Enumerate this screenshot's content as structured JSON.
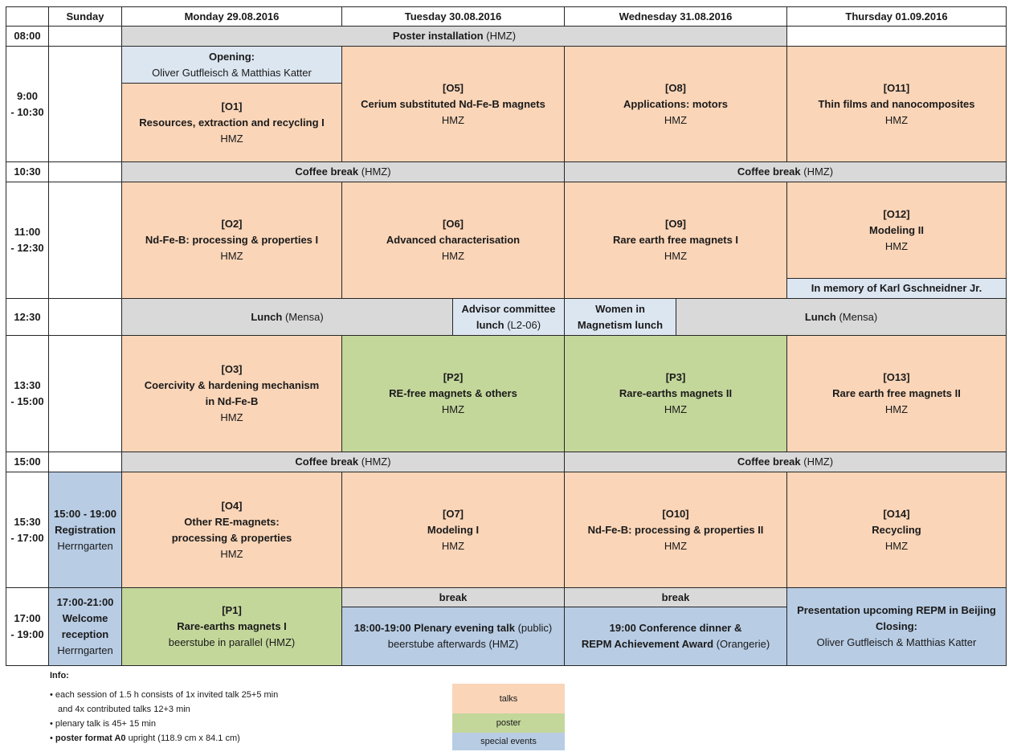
{
  "header": {
    "days": [
      "Sunday",
      "Monday 29.08.2016",
      "Tuesday 30.08.2016",
      "Wednesday 31.08.2016",
      "Thursday 01.09.2016"
    ]
  },
  "times": [
    "08:00",
    "9:00",
    "- 10:30",
    "10:30",
    "11:00",
    "- 12:30",
    "12:30",
    "13:30",
    "- 15:00",
    "15:00",
    "15:30",
    "- 17:00",
    "17:00",
    "- 19:00"
  ],
  "row0800": {
    "poster": "Poster installation",
    "poster_loc": "(HMZ)"
  },
  "row0900": {
    "opening_title": "Opening:",
    "opening_names": "Oliver Gutfleisch & Matthias Katter",
    "o1_code": "[O1]",
    "o1_title": "Resources, extraction and recycling I",
    "o1_loc": "HMZ",
    "o5_code": "[O5]",
    "o5_title": "Cerium substituted Nd-Fe-B magnets",
    "o5_loc": "HMZ",
    "o8_code": "[O8]",
    "o8_title": "Applications: motors",
    "o8_loc": "HMZ",
    "o11_code": "[O11]",
    "o11_title": "Thin films and nanocomposites",
    "o11_loc": "HMZ"
  },
  "row1030": {
    "coffee1": "Coffee break",
    "coffee1_loc": "(HMZ)",
    "coffee2": "Coffee break",
    "coffee2_loc": "(HMZ)"
  },
  "row1100": {
    "o2_code": "[O2]",
    "o2_title": "Nd-Fe-B: processing & properties I",
    "o2_loc": "HMZ",
    "o6_code": "[O6]",
    "o6_title": "Advanced characterisation",
    "o6_loc": "HMZ",
    "o9_code": "[O9]",
    "o9_title": "Rare earth free magnets I",
    "o9_loc": "HMZ",
    "o12_code": "[O12]",
    "o12_title": "Modeling II",
    "o12_loc": "HMZ",
    "memory": "In memory of Karl Gschneidner Jr."
  },
  "row1230": {
    "lunch1": "Lunch",
    "lunch1_loc": "(Mensa)",
    "advisor_line1": "Advisor committee",
    "advisor_line2": "lunch",
    "advisor_loc": "(L2-06)",
    "women_line1": "Women in",
    "women_line2": "Magnetism lunch",
    "lunch2": "Lunch",
    "lunch2_loc": "(Mensa)"
  },
  "row1330": {
    "o3_code": "[O3]",
    "o3_title1": "Coercivity & hardening mechanism",
    "o3_title2": "in Nd-Fe-B",
    "o3_loc": "HMZ",
    "p2_code": "[P2]",
    "p2_title": "RE-free magnets & others",
    "p2_loc": "HMZ",
    "p3_code": "[P3]",
    "p3_title": "Rare-earths magnets II",
    "p3_loc": "HMZ",
    "o13_code": "[O13]",
    "o13_title": "Rare earth free magnets II",
    "o13_loc": "HMZ"
  },
  "row1500": {
    "coffee1": "Coffee break",
    "coffee1_loc": "(HMZ)",
    "coffee2": "Coffee break",
    "coffee2_loc": "(HMZ)"
  },
  "row1530": {
    "reg_time": "15:00 - 19:00",
    "reg_title": "Registration",
    "reg_loc": "Herrngarten",
    "o4_code": "[O4]",
    "o4_title1": "Other RE-magnets:",
    "o4_title2": "processing & properties",
    "o4_loc": "HMZ",
    "o7_code": "[O7]",
    "o7_title": "Modeling I",
    "o7_loc": "HMZ",
    "o10_code": "[O10]",
    "o10_title": "Nd-Fe-B: processing & properties II",
    "o10_loc": "HMZ",
    "o14_code": "[O14]",
    "o14_title": "Recycling",
    "o14_loc": "HMZ"
  },
  "row1700": {
    "welcome_time": "17:00-21:00",
    "welcome_title1": "Welcome",
    "welcome_title2": "reception",
    "welcome_loc": "Herrngarten",
    "p1_code": "[P1]",
    "p1_title": "Rare-earths magnets I",
    "p1_sub": "beerstube in parallel (HMZ)",
    "break_tue": "break",
    "break_wed": "break",
    "plenary_bold": "18:00-19:00 Plenary evening talk",
    "plenary_normal": " (public)",
    "plenary_sub": "beerstube afterwards (HMZ)",
    "dinner_line1": "19:00 Conference dinner &",
    "dinner_line2": "REPM Achievement Award",
    "dinner_loc": " (Orangerie)",
    "closing_line1": "Presentation upcoming REPM in Beijing",
    "closing_line2": "Closing:",
    "closing_names": "Oliver Gutfleisch & Matthias Katter"
  },
  "info": {
    "title": "Info:",
    "line1": "each session of 1.5 h consists of 1x invited talk  25+5 min",
    "line1b": "and 4x contributed talks  12+3 min",
    "line2": "plenary talk is 45+ 15 min",
    "line3_bold": "poster format A0",
    "line3_rest": " upright (118.9 cm x 84.1 cm)"
  },
  "legend": {
    "talks": "talks",
    "poster": "poster",
    "special": "special events"
  },
  "colors": {
    "talks": "#fad5b8",
    "poster": "#c4d79b",
    "special": "#b8cce4",
    "break": "#d9d9d9",
    "light_special": "#dce6f1"
  }
}
